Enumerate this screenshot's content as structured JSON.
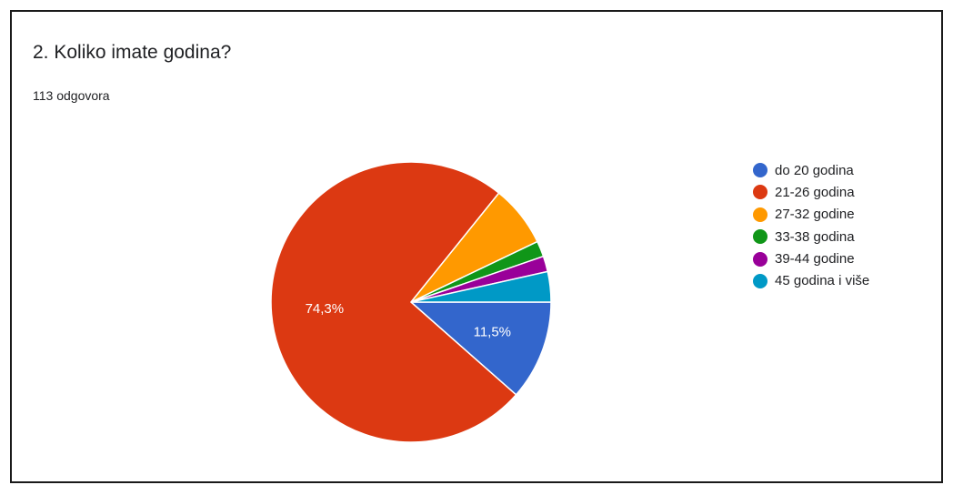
{
  "card": {
    "question_title": "2. Koliko imate godina?",
    "response_count": "113 odgovora"
  },
  "chart_data": {
    "type": "pie",
    "categories": [
      "do 20 godina",
      "21-26 godina",
      "27-32 godine",
      "33-38 godina",
      "39-44 godine",
      "45 godina i više"
    ],
    "values": [
      11.5,
      74.3,
      7.1,
      1.8,
      1.8,
      3.5
    ],
    "colors": [
      "#3366cc",
      "#dc3912",
      "#ff9900",
      "#109618",
      "#990099",
      "#0099c6"
    ],
    "slice_labels": [
      "11,5%",
      "74,3%",
      "",
      "",
      "",
      ""
    ],
    "legend_position": "right"
  }
}
